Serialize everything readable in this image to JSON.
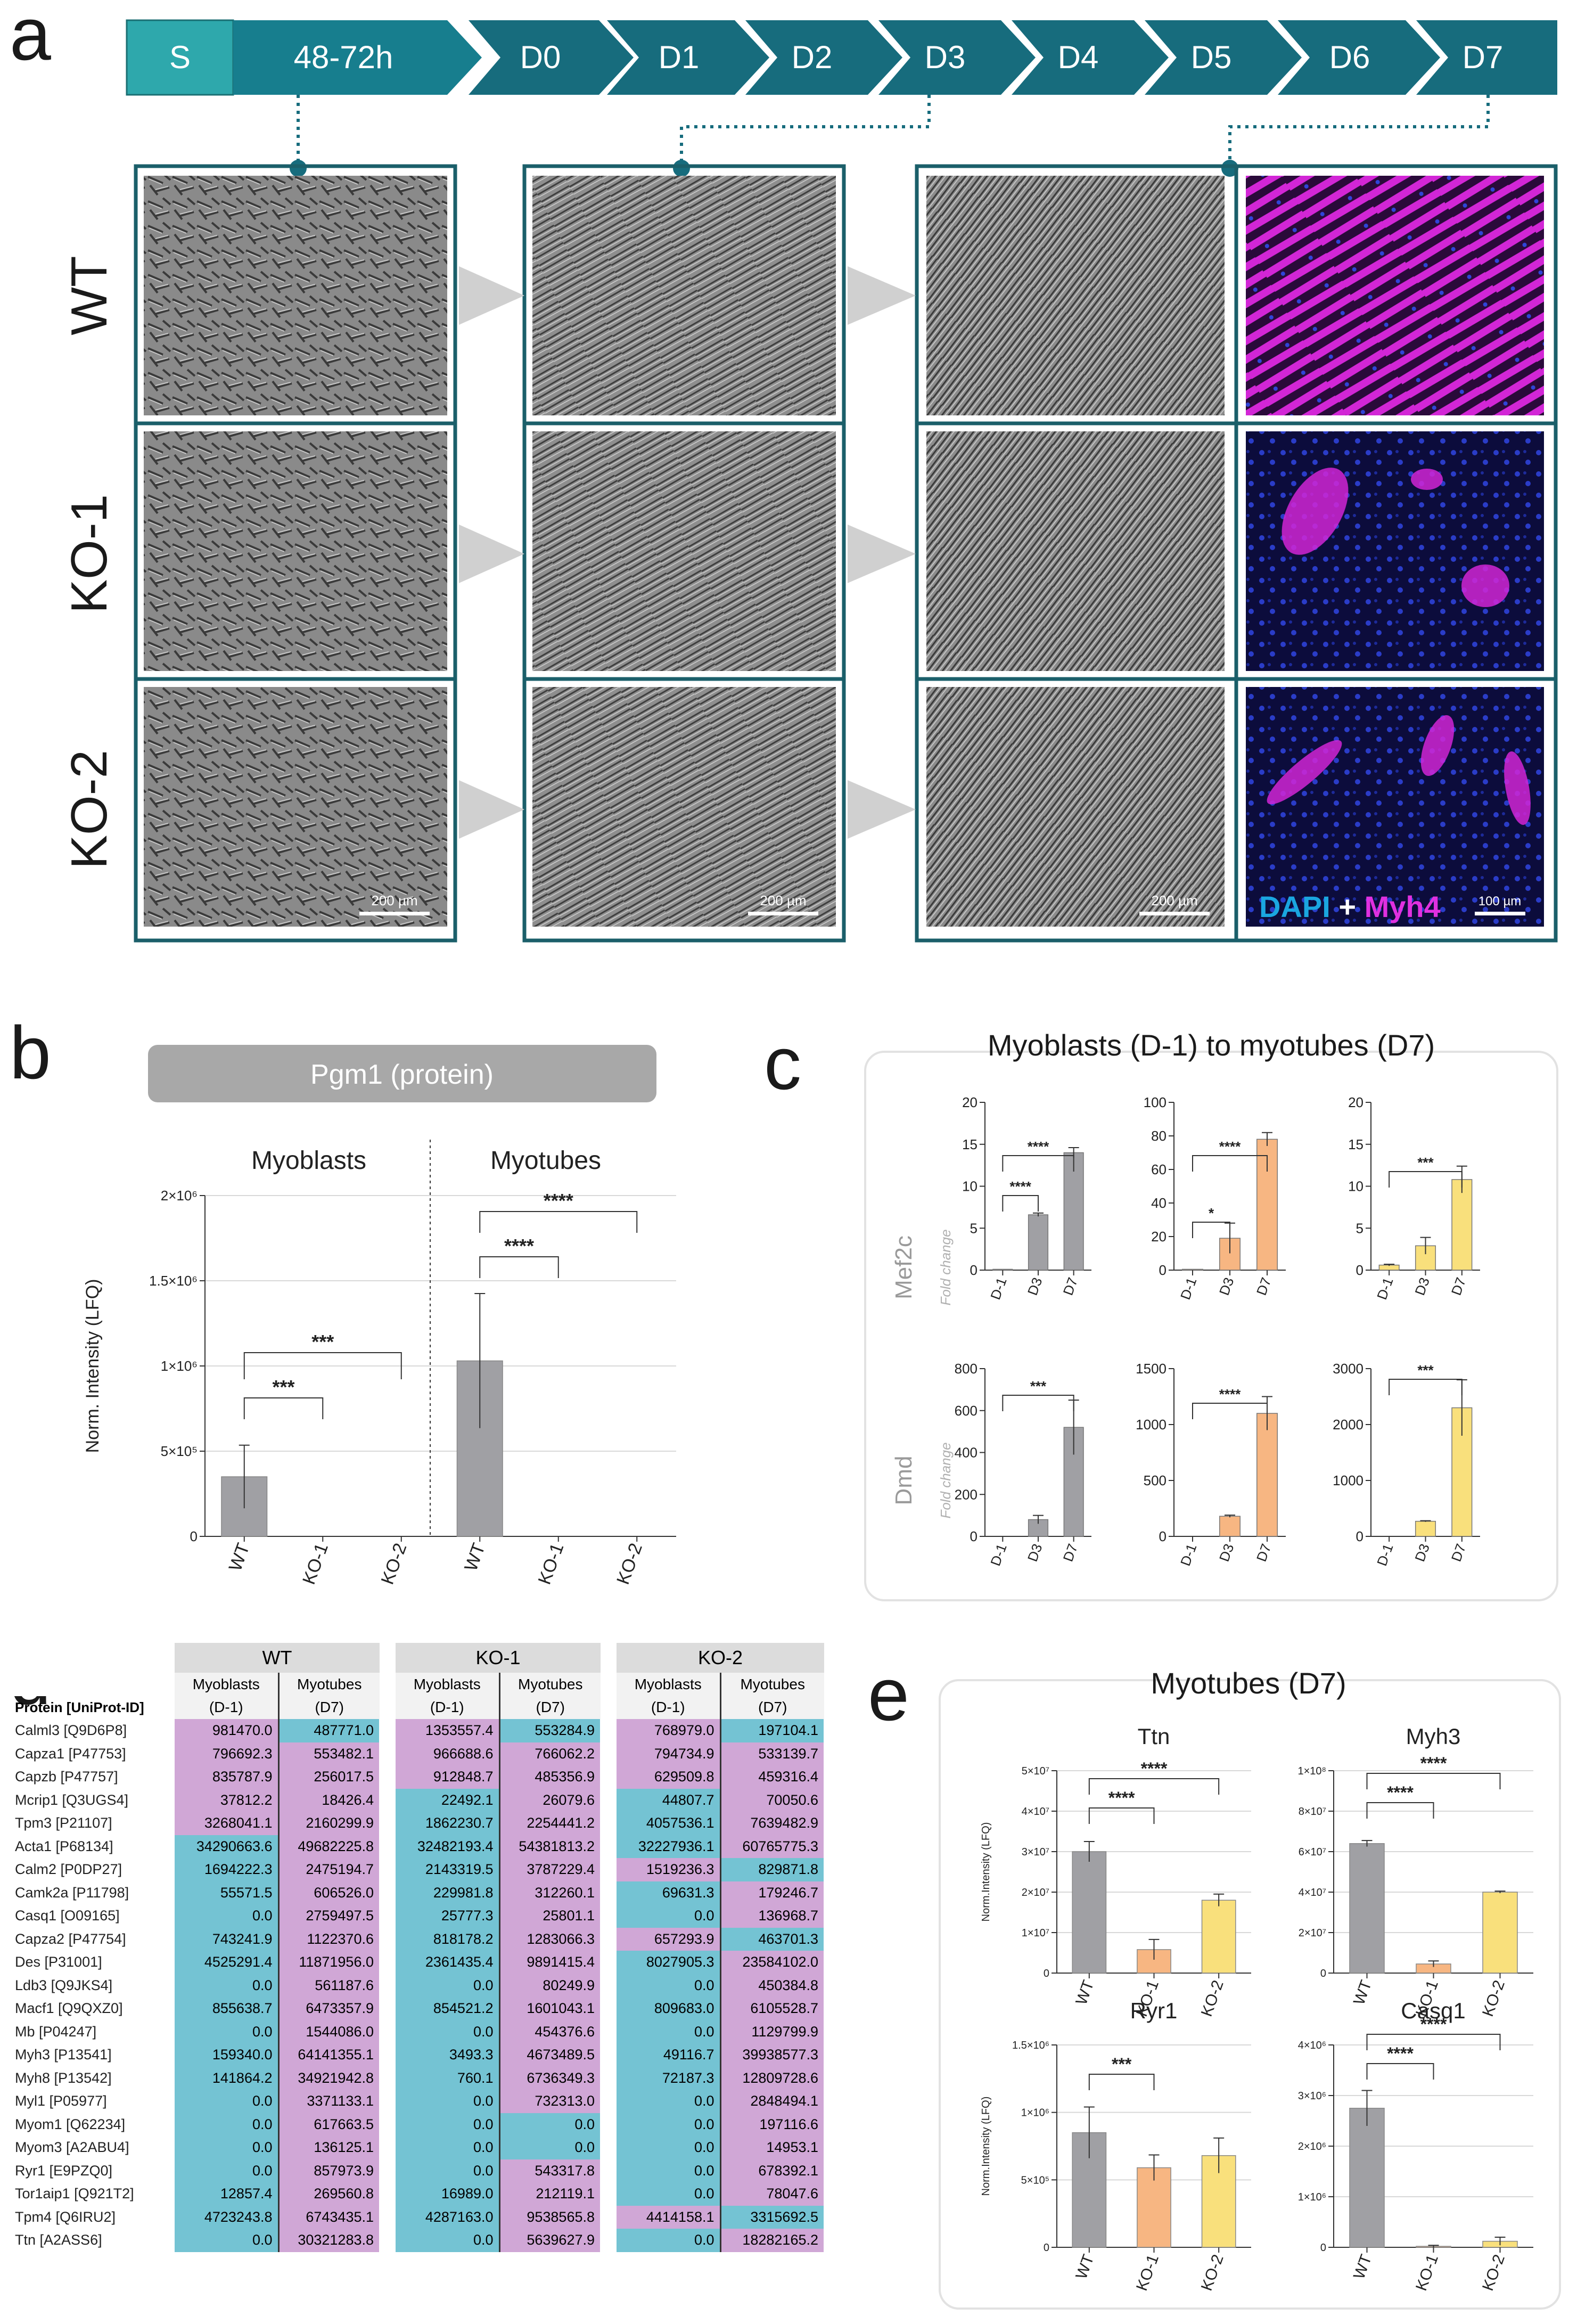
{
  "panel_letters": [
    "a",
    "b",
    "c",
    "d",
    "e"
  ],
  "a": {
    "timeline": [
      "S",
      "48-72h",
      "D0",
      "D1",
      "D2",
      "D3",
      "D4",
      "D5",
      "D6",
      "D7"
    ],
    "rows": [
      "WT",
      "KO-1",
      "KO-2"
    ],
    "scale_bar": "200 µm",
    "scale_bar_if": "100 µm",
    "stain": {
      "dapi": "DAPI",
      "plus": " + ",
      "myh4": "Myh4"
    }
  },
  "b": {
    "header": "Pgm1 (protein)",
    "groups": [
      "Myoblasts",
      "Myotubes"
    ],
    "chart_data": {
      "type": "bar",
      "title": "Pgm1 (protein)",
      "categories": [
        "WT",
        "KO-1",
        "KO-2",
        "WT",
        "KO-1",
        "KO-2"
      ],
      "values": [
        350000,
        0,
        0,
        1030000,
        0,
        0
      ],
      "errors": [
        185000,
        0,
        0,
        395000,
        0,
        0
      ],
      "ylabel": "Norm. Intensity (LFQ)",
      "ylim": [
        0,
        2000000
      ],
      "yticks": [
        "0",
        "5×10⁵",
        "1×10⁶",
        "1.5×10⁶",
        "2×10⁶"
      ],
      "significance": [
        "***",
        "***",
        "****",
        "****"
      ]
    }
  },
  "c": {
    "title": "Myoblasts (D-1) to myotubes (D7)",
    "row_labels": [
      "Mef2c",
      "Dmd"
    ],
    "axis_label": "Fold change",
    "chart_data": [
      {
        "type": "bar",
        "row": "Mef2c",
        "categories": [
          "D-1",
          "D3",
          "D7"
        ],
        "values": [
          0.1,
          6.6,
          14
        ],
        "errors": [
          0,
          0.2,
          0.6
        ],
        "ylim": [
          0,
          20
        ],
        "yticks": [
          "0",
          "5",
          "10",
          "15",
          "20"
        ],
        "significance": [
          "****",
          "****"
        ]
      },
      {
        "type": "bar",
        "row": "Mef2c",
        "categories": [
          "D-1",
          "D3",
          "D7"
        ],
        "values": [
          0.5,
          19,
          78
        ],
        "errors": [
          0,
          9,
          4
        ],
        "ylim": [
          0,
          100
        ],
        "yticks": [
          "0",
          "20",
          "40",
          "60",
          "80",
          "100"
        ],
        "significance": [
          "*",
          "****"
        ]
      },
      {
        "type": "bar",
        "row": "Mef2c",
        "categories": [
          "D-1",
          "D3",
          "D7"
        ],
        "values": [
          0.6,
          2.9,
          10.8
        ],
        "errors": [
          0.1,
          1,
          1.6
        ],
        "ylim": [
          0,
          20
        ],
        "yticks": [
          "0",
          "5",
          "10",
          "15",
          "20"
        ],
        "significance": [
          "***"
        ]
      },
      {
        "type": "bar",
        "row": "Dmd",
        "categories": [
          "D-1",
          "D3",
          "D7"
        ],
        "values": [
          0,
          80,
          520
        ],
        "errors": [
          0,
          20,
          130
        ],
        "ylim": [
          0,
          800
        ],
        "yticks": [
          "0",
          "200",
          "400",
          "600",
          "800"
        ],
        "significance": [
          "***"
        ]
      },
      {
        "type": "bar",
        "row": "Dmd",
        "categories": [
          "D-1",
          "D3",
          "D7"
        ],
        "values": [
          0,
          180,
          1100
        ],
        "errors": [
          0,
          10,
          150
        ],
        "ylim": [
          0,
          1500
        ],
        "yticks": [
          "0",
          "500",
          "1000",
          "1500"
        ],
        "significance": [
          "****"
        ]
      },
      {
        "type": "bar",
        "row": "Dmd",
        "categories": [
          "D-1",
          "D3",
          "D7"
        ],
        "values": [
          0,
          270,
          2300
        ],
        "errors": [
          0,
          10,
          500
        ],
        "ylim": [
          0,
          3000
        ],
        "yticks": [
          "0",
          "1000",
          "2000",
          "3000"
        ],
        "significance": [
          "***"
        ]
      }
    ]
  },
  "d": {
    "groups": [
      "WT",
      "KO-1",
      "KO-2"
    ],
    "sub1": [
      "Myoblasts",
      "Myotubes"
    ],
    "sub2": [
      "(D-1)",
      "(D7)"
    ],
    "protein_header": "Protein [UniProt-ID]",
    "chart_data": {
      "type": "table",
      "columns": [
        "WT Myoblasts (D-1)",
        "WT Myotubes (D7)",
        "KO-1 Myoblasts (D-1)",
        "KO-1 Myotubes (D7)",
        "KO-2 Myoblasts (D-1)",
        "KO-2 Myotubes (D7)"
      ],
      "rows": [
        {
          "p": "Calml3 [Q9D6P8]",
          "v": [
            "981470.0",
            "487771.0",
            "1353557.4",
            "553284.9",
            "768979.0",
            "197104.1"
          ],
          "c": "mbmbmb"
        },
        {
          "p": "Capza1 [P47753]",
          "v": [
            "796692.3",
            "553482.1",
            "966688.6",
            "766062.2",
            "794734.9",
            "533139.7"
          ],
          "c": "mmmmmm"
        },
        {
          "p": "Capzb [P47757]",
          "v": [
            "835787.9",
            "256017.5",
            "912848.7",
            "485356.9",
            "629509.8",
            "459316.4"
          ],
          "c": "mmmmmm"
        },
        {
          "p": "Mcrip1 [Q3UGS4]",
          "v": [
            "37812.2",
            "18426.4",
            "22492.1",
            "26079.6",
            "44807.7",
            "70050.6"
          ],
          "c": "mmbmbm"
        },
        {
          "p": "Tpm3 [P21107]",
          "v": [
            "3268041.1",
            "2160299.9",
            "1862230.7",
            "2254441.2",
            "4057536.1",
            "7639482.9"
          ],
          "c": "mmbmbm"
        },
        {
          "p": "Acta1 [P68134]",
          "v": [
            "34290663.6",
            "49682225.8",
            "32482193.4",
            "54381813.2",
            "32227936.1",
            "60765775.3"
          ],
          "c": "bmbmbm"
        },
        {
          "p": "Calm2 [P0DP27]",
          "v": [
            "1694222.3",
            "2475194.7",
            "2143319.5",
            "3787229.4",
            "1519236.3",
            "829871.8"
          ],
          "c": "bmbmmb"
        },
        {
          "p": "Camk2a [P11798]",
          "v": [
            "55571.5",
            "606526.0",
            "229981.8",
            "312260.1",
            "69631.3",
            "179246.7"
          ],
          "c": "bmbmbm"
        },
        {
          "p": "Casq1 [O09165]",
          "v": [
            "0.0",
            "2759497.5",
            "25777.3",
            "25801.1",
            "0.0",
            "136968.7"
          ],
          "c": "bmbmbm"
        },
        {
          "p": "Capza2 [P47754]",
          "v": [
            "743241.9",
            "1122370.6",
            "818178.2",
            "1283066.3",
            "657293.9",
            "463701.3"
          ],
          "c": "bmbmmb"
        },
        {
          "p": "Des [P31001]",
          "v": [
            "4525291.4",
            "11871956.0",
            "2361435.4",
            "9891415.4",
            "8027905.3",
            "23584102.0"
          ],
          "c": "bmbmbm"
        },
        {
          "p": "Ldb3 [Q9JKS4]",
          "v": [
            "0.0",
            "561187.6",
            "0.0",
            "80249.9",
            "0.0",
            "450384.8"
          ],
          "c": "bmbmbm"
        },
        {
          "p": "Macf1 [Q9QXZ0]",
          "v": [
            "855638.7",
            "6473357.9",
            "854521.2",
            "1601043.1",
            "809683.0",
            "6105528.7"
          ],
          "c": "bmbmbm"
        },
        {
          "p": "Mb [P04247]",
          "v": [
            "0.0",
            "1544086.0",
            "0.0",
            "454376.6",
            "0.0",
            "1129799.9"
          ],
          "c": "bmbmbm"
        },
        {
          "p": "Myh3 [P13541]",
          "v": [
            "159340.0",
            "64141355.1",
            "3493.3",
            "4673489.5",
            "49116.7",
            "39938577.3"
          ],
          "c": "bmbmbm"
        },
        {
          "p": "Myh8 [P13542]",
          "v": [
            "141864.2",
            "34921942.8",
            "760.1",
            "6736349.3",
            "72187.3",
            "12809728.6"
          ],
          "c": "bmbmbm"
        },
        {
          "p": "Myl1 [P05977]",
          "v": [
            "0.0",
            "3371133.1",
            "0.0",
            "732313.0",
            "0.0",
            "2848494.1"
          ],
          "c": "bmbmbm"
        },
        {
          "p": "Myom1 [Q62234]",
          "v": [
            "0.0",
            "617663.5",
            "0.0",
            "0.0",
            "0.0",
            "197116.6"
          ],
          "c": "bmbbbm"
        },
        {
          "p": "Myom3 [A2ABU4]",
          "v": [
            "0.0",
            "136125.1",
            "0.0",
            "0.0",
            "0.0",
            "14953.1"
          ],
          "c": "bmbbbm"
        },
        {
          "p": "Ryr1 [E9PZQ0]",
          "v": [
            "0.0",
            "857973.9",
            "0.0",
            "543317.8",
            "0.0",
            "678392.1"
          ],
          "c": "bmbmbm"
        },
        {
          "p": "Tor1aip1 [Q921T2]",
          "v": [
            "12857.4",
            "269560.8",
            "16989.0",
            "212119.1",
            "0.0",
            "78047.6"
          ],
          "c": "bmbmbm"
        },
        {
          "p": "Tpm4 [Q6IRU2]",
          "v": [
            "4723243.8",
            "6743435.1",
            "4287163.0",
            "9538565.8",
            "4414158.1",
            "3315692.5"
          ],
          "c": "bmbmmb"
        },
        {
          "p": "Ttn [A2ASS6]",
          "v": [
            "0.0",
            "30321283.8",
            "0.0",
            "5639627.9",
            "0.0",
            "18282165.2"
          ],
          "c": "bmbmbm"
        }
      ]
    }
  },
  "e": {
    "title": "Myotubes (D7)",
    "ylabel": "Norm.Intensity (LFQ)",
    "chart_data": [
      {
        "type": "bar",
        "title": "Ttn",
        "categories": [
          "WT",
          "KO-1",
          "KO-2"
        ],
        "values": [
          30000000,
          5800000,
          18000000
        ],
        "errors": [
          2500000,
          2500000,
          1500000
        ],
        "ylim": [
          0,
          50000000
        ],
        "yticks": [
          "0",
          "1×10⁷",
          "2×10⁷",
          "3×10⁷",
          "4×10⁷",
          "5×10⁷"
        ],
        "significance": [
          "****",
          "****"
        ]
      },
      {
        "type": "bar",
        "title": "Myh3",
        "categories": [
          "WT",
          "KO-1",
          "KO-2"
        ],
        "values": [
          64000000,
          4500000,
          40000000
        ],
        "errors": [
          1500000,
          1500000,
          500000
        ],
        "ylim": [
          0,
          100000000
        ],
        "yticks": [
          "0",
          "2×10⁷",
          "4×10⁷",
          "6×10⁷",
          "8×10⁷",
          "1×10⁸"
        ],
        "significance": [
          "****",
          "****"
        ]
      },
      {
        "type": "bar",
        "title": "Ryr1",
        "categories": [
          "WT",
          "KO-1",
          "KO-2"
        ],
        "values": [
          850000,
          590000,
          680000
        ],
        "errors": [
          190000,
          95000,
          130000
        ],
        "ylim": [
          0,
          1500000
        ],
        "yticks": [
          "0",
          "5×10⁵",
          "1×10⁶",
          "1.5×10⁶"
        ],
        "significance": [
          "***"
        ]
      },
      {
        "type": "bar",
        "title": "Casq1",
        "categories": [
          "WT",
          "KO-1",
          "KO-2"
        ],
        "values": [
          2750000,
          20000,
          120000
        ],
        "errors": [
          350000,
          20000,
          80000
        ],
        "ylim": [
          0,
          4000000
        ],
        "yticks": [
          "0",
          "1×10⁶",
          "2×10⁶",
          "3×10⁶",
          "4×10⁶"
        ],
        "significance": [
          "****",
          "****"
        ]
      }
    ]
  }
}
